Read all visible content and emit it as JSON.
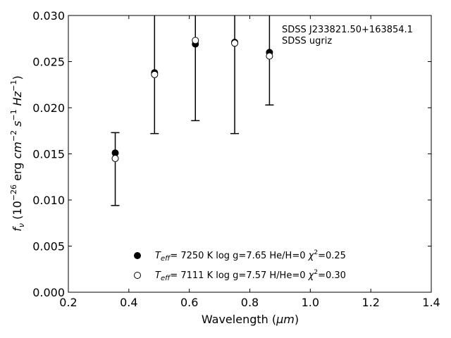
{
  "chart_data": {
    "type": "scatter",
    "xlabel_main": "Wavelength (",
    "xlabel_unit": "μm",
    "xlabel_close": ")",
    "ylabel": {
      "f": "f",
      "nu": "ν",
      "open": " (10",
      "exp1": "−26",
      "erg": " erg ",
      "cm": "cm",
      "exp2": "−2",
      "s": " s",
      "exp3": "−1",
      "hz": " Hz",
      "exp4": "−1",
      "close": ")"
    },
    "xlim": [
      0.2,
      1.4
    ],
    "ylim": [
      0.0,
      0.03
    ],
    "x_ticks": [
      "0.2",
      "0.4",
      "0.6",
      "0.8",
      "1.0",
      "1.2",
      "1.4"
    ],
    "y_ticks": [
      "0.000",
      "0.005",
      "0.010",
      "0.015",
      "0.020",
      "0.025",
      "0.030"
    ],
    "annotation": [
      "SDSS J233821.50+163854.1",
      "SDSS ugriz"
    ],
    "observed": {
      "x": [
        0.355,
        0.485,
        0.62,
        0.75,
        0.865
      ],
      "err_low": [
        0.0094,
        0.0172,
        0.0186,
        0.0172,
        0.0203
      ],
      "err_high": [
        0.0173,
        0.031,
        0.031,
        0.031,
        0.031
      ]
    },
    "series": [
      {
        "marker": "filled",
        "x": [
          0.355,
          0.485,
          0.62,
          0.75,
          0.865
        ],
        "y": [
          0.0151,
          0.0238,
          0.0269,
          0.0271,
          0.026
        ]
      },
      {
        "marker": "open",
        "x": [
          0.355,
          0.485,
          0.62,
          0.75,
          0.865
        ],
        "y": [
          0.0145,
          0.0236,
          0.0273,
          0.027,
          0.0256
        ]
      }
    ],
    "legend": [
      {
        "marker": "filled",
        "teff": "T",
        "teff_sub": "eff",
        "teff_val": "=  7250 K  log g=7.65  He/H=0  ",
        "chi": "χ",
        "chi_sup": "2",
        "chi_val": "=0.25"
      },
      {
        "marker": "open",
        "teff": "T",
        "teff_sub": "eff",
        "teff_val": "=  7111 K  log g=7.57  H/He=0  ",
        "chi": "χ",
        "chi_sup": "2",
        "chi_val": "=0.30"
      }
    ]
  }
}
